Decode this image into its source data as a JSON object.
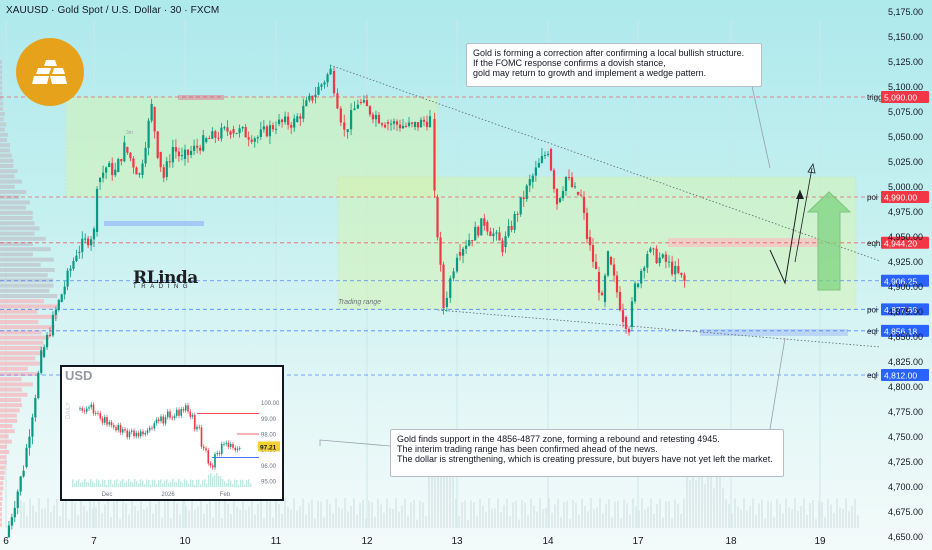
{
  "header": {
    "title": "XAUUSD · Gold Spot / U.S. Dollar · 30 · FXCM"
  },
  "colors": {
    "bull": "#089981",
    "bear": "#f23645",
    "level_red": "#f23645",
    "level_blue": "#2962ff",
    "zone_green": "#d9f5a8",
    "zone_yellow": "#f7f3b4"
  },
  "icons": [
    "gold-bars-logo-icon"
  ],
  "chart_data": {
    "type": "candlestick",
    "symbol": "XAUUSD",
    "timeframe": "30",
    "ylim": [
      4637,
      5187
    ],
    "y_ticks": [
      "5,175.00",
      "5,150.00",
      "5,125.00",
      "5,100.00",
      "5,075.00",
      "5,050.00",
      "5,025.00",
      "5,000.00",
      "4,975.00",
      "4,950.00",
      "4,925.00",
      "4,900.00",
      "4,875.00",
      "4,850.00",
      "4,825.00",
      "4,800.00",
      "4,775.00",
      "4,750.00",
      "4,725.00",
      "4,700.00",
      "4,675.00",
      "4,650.00"
    ],
    "x_ticks": [
      "6",
      "7",
      "10",
      "11",
      "12",
      "13",
      "14",
      "17",
      "18",
      "19"
    ],
    "price_path": [
      {
        "day": 6.0,
        "price": 4650
      },
      {
        "day": 6.2,
        "price": 4720
      },
      {
        "day": 6.4,
        "price": 4830
      },
      {
        "day": 6.6,
        "price": 4885
      },
      {
        "day": 6.8,
        "price": 4935
      },
      {
        "day": 7.0,
        "price": 4955
      },
      {
        "day": 7.1,
        "price": 5005
      },
      {
        "day": 7.4,
        "price": 5020
      },
      {
        "day": 7.7,
        "price": 5015
      },
      {
        "day": 8.0,
        "price": 5040
      },
      {
        "day": 8.5,
        "price": 5012
      },
      {
        "day": 8.9,
        "price": 5080
      },
      {
        "day": 9.1,
        "price": 5035
      },
      {
        "day": 9.3,
        "price": 5010
      },
      {
        "day": 9.6,
        "price": 5040
      },
      {
        "day": 9.9,
        "price": 5028
      },
      {
        "day": 10.2,
        "price": 5045
      },
      {
        "day": 10.5,
        "price": 5058
      },
      {
        "day": 10.8,
        "price": 5050
      },
      {
        "day": 11.0,
        "price": 5063
      },
      {
        "day": 11.2,
        "price": 5065
      },
      {
        "day": 11.4,
        "price": 5090
      },
      {
        "day": 11.6,
        "price": 5116
      },
      {
        "day": 11.75,
        "price": 5055
      },
      {
        "day": 11.9,
        "price": 5085
      },
      {
        "day": 12.2,
        "price": 5065
      },
      {
        "day": 12.5,
        "price": 5060
      },
      {
        "day": 12.7,
        "price": 5068
      },
      {
        "day": 12.75,
        "price": 4990
      },
      {
        "day": 12.85,
        "price": 4880
      },
      {
        "day": 13.0,
        "price": 4935
      },
      {
        "day": 13.3,
        "price": 4965
      },
      {
        "day": 13.5,
        "price": 4940
      },
      {
        "day": 13.8,
        "price": 5005
      },
      {
        "day": 14.0,
        "price": 5038
      },
      {
        "day": 14.3,
        "price": 4985
      },
      {
        "day": 14.6,
        "price": 5010
      },
      {
        "day": 14.9,
        "price": 4995
      },
      {
        "day": 15.1,
        "price": 4990
      },
      {
        "day": 15.3,
        "price": 4950
      },
      {
        "day": 15.6,
        "price": 4915
      },
      {
        "day": 15.8,
        "price": 4885
      },
      {
        "day": 16.0,
        "price": 4930
      },
      {
        "day": 16.3,
        "price": 4895
      },
      {
        "day": 16.5,
        "price": 4870
      },
      {
        "day": 16.7,
        "price": 4860
      },
      {
        "day": 16.9,
        "price": 4900
      },
      {
        "day": 17.1,
        "price": 4935
      },
      {
        "day": 17.3,
        "price": 4925
      },
      {
        "day": 17.5,
        "price": 4905
      }
    ],
    "levels": [
      {
        "label": "trigger",
        "price": 5090.0,
        "text": "5,090.00",
        "color": "#f23645"
      },
      {
        "label": "poi",
        "price": 4990.0,
        "text": "4,990.00",
        "color": "#f23645"
      },
      {
        "label": "eqh",
        "price": 4944.2,
        "text": "4,944.20",
        "color": "#f23645"
      },
      {
        "label": "",
        "price": 4906.25,
        "text": "4,906.25",
        "color": "#2962ff"
      },
      {
        "label": "poi",
        "price": 4877.68,
        "text": "4,877.68",
        "color": "#2962ff"
      },
      {
        "label": "eql",
        "price": 4856.18,
        "text": "4,856.18",
        "color": "#2962ff"
      },
      {
        "label": "eql",
        "price": 4812.0,
        "text": "4,812.00",
        "color": "#2962ff"
      }
    ],
    "annotations": {
      "trading_range": "Trading range",
      "small_tag": "3m"
    },
    "inset": {
      "title": "USD",
      "side_label": "DAILY",
      "ylim": [
        94.5,
        101.5
      ],
      "y_ticks": [
        "100.00",
        "99.00",
        "98.00",
        "97.00",
        "96.00",
        "95.00"
      ],
      "x_ticks": [
        "Dec",
        "2026",
        "Feb"
      ],
      "last_price": "97.21",
      "close_path": [
        99.6,
        99.8,
        99.2,
        98.9,
        98.6,
        98.4,
        98.2,
        98.0,
        97.9,
        98.1,
        98.4,
        98.7,
        98.9,
        99.2,
        99.4,
        99.6,
        99.3,
        98.4,
        97.2,
        96.0,
        96.7,
        97.5,
        97.3,
        97.21
      ]
    }
  },
  "notes": {
    "top": "Gold is forming a correction after confirming a local bullish structure.\nIf the FOMC response confirms a dovish stance,\ngold may return to growth and implement a wedge pattern.",
    "bottom": "Gold finds support in the 4856-4877 zone, forming a rebound and retesting 4945.\nThe interim trading range has been confirmed ahead of the news.\nThe dollar is strengthening, which is creating pressure, but buyers have not yet left the market."
  },
  "brand": {
    "main": "RLinda",
    "sub": "TRADING"
  }
}
